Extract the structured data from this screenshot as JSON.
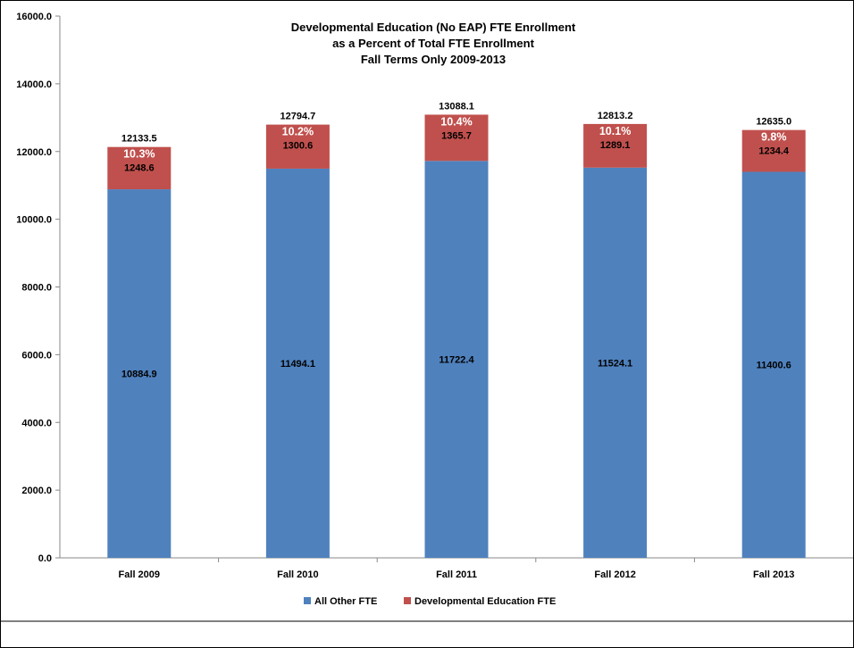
{
  "chart_data": {
    "type": "bar",
    "stacked": true,
    "title": [
      "Developmental Education (No EAP) FTE Enrollment",
      "as a Percent of Total FTE Enrollment",
      "Fall Terms Only 2009-2013"
    ],
    "categories": [
      "Fall 2009",
      "Fall 2010",
      "Fall 2011",
      "Fall 2012",
      "Fall 2013"
    ],
    "series": [
      {
        "name": "All Other FTE",
        "color": "#4f81bd",
        "values": [
          10884.9,
          11494.1,
          11722.4,
          11524.1,
          11400.6
        ],
        "labels": [
          "10884.9",
          "11494.1",
          "11722.4",
          "11524.1",
          "11400.6"
        ]
      },
      {
        "name": "Developmental Education FTE",
        "color": "#c0504d",
        "values": [
          1248.6,
          1300.6,
          1365.7,
          1289.1,
          1234.4
        ],
        "labels": [
          "1248.6",
          "1300.6",
          "1365.7",
          "1289.1",
          "1234.4"
        ],
        "percent_labels": [
          "10.3%",
          "10.2%",
          "10.4%",
          "10.1%",
          "9.8%"
        ]
      }
    ],
    "totals": [
      "12133.5",
      "12794.7",
      "13088.1",
      "12813.2",
      "12635.0"
    ],
    "ylim": [
      0,
      16000
    ],
    "yticks": [
      "0.0",
      "2000.0",
      "4000.0",
      "6000.0",
      "8000.0",
      "10000.0",
      "12000.0",
      "14000.0",
      "16000.0"
    ],
    "ytick_values": [
      0,
      2000,
      4000,
      6000,
      8000,
      10000,
      12000,
      14000,
      16000
    ],
    "grid": false,
    "legend": "bottom"
  }
}
